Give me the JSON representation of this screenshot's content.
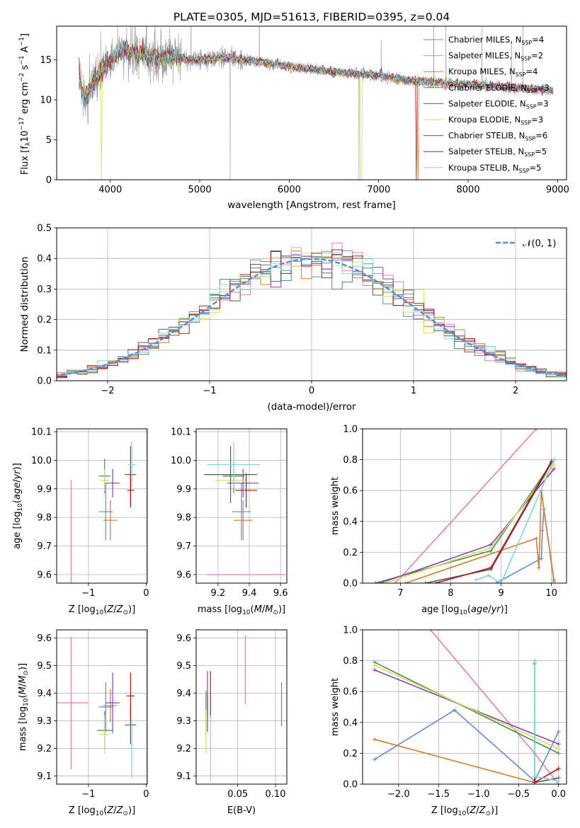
{
  "title": "PLATE=0305, MJD=51613, FIBERID=0395, z=0.04",
  "colors": {
    "chabrier_miles": "#5B8DDC",
    "salpeter_miles": "#E87DB8",
    "kroupa_miles": "#D97A25",
    "chabrier_elodie": "#4E8A5A",
    "salpeter_elodie": "#8E3DB5",
    "kroupa_elodie": "#C8E84A",
    "chabrier_stelib": "#5A5A5A",
    "salpeter_stelib": "#B01818",
    "kroupa_stelib": "#7ED6DD",
    "gaussian": "#5B8DDC"
  },
  "chart_data": [
    {
      "id": "spectrum",
      "type": "line",
      "xlabel": "wavelength [Angstrom, rest frame]",
      "ylabel": "Flux [f_λ10^-17 erg cm^-2 s^-1 A^-1]",
      "xlim": [
        3400,
        9100
      ],
      "ylim": [
        0,
        19.2
      ],
      "xticks": [
        4000,
        5000,
        6000,
        7000,
        8000,
        9000
      ],
      "yticks": [
        0,
        5,
        10,
        15
      ],
      "legend_position": "top-right",
      "legend": [
        {
          "label": "Chabrier MILES, N",
          "sub": "SSP",
          "suffix": "=4",
          "color_key": "chabrier_miles"
        },
        {
          "label": "Salpeter MILES, N",
          "sub": "SSP",
          "suffix": "=2",
          "color_key": "salpeter_miles"
        },
        {
          "label": "Kroupa MILES, N",
          "sub": "SSP",
          "suffix": "=4",
          "color_key": "kroupa_miles"
        },
        {
          "label": "Chabrier ELODIE, N",
          "sub": "SSP",
          "suffix": "=3",
          "color_key": "chabrier_elodie"
        },
        {
          "label": "Salpeter ELODIE, N",
          "sub": "SSP",
          "suffix": "=3",
          "color_key": "salpeter_elodie"
        },
        {
          "label": "Kroupa ELODIE, N",
          "sub": "SSP",
          "suffix": "=3",
          "color_key": "kroupa_elodie"
        },
        {
          "label": "Chabrier STELIB, N",
          "sub": "SSP",
          "suffix": "=6",
          "color_key": "chabrier_stelib"
        },
        {
          "label": "Salpeter STELIB, N",
          "sub": "SSP",
          "suffix": "=5",
          "color_key": "salpeter_stelib"
        },
        {
          "label": "Kroupa STELIB, N",
          "sub": "SSP",
          "suffix": "=5",
          "color_key": "kroupa_stelib"
        }
      ],
      "observed": {
        "color": "#a0a0a0",
        "x_range": [
          3650,
          8950
        ]
      },
      "model_continuum": [
        [
          3650,
          13.0
        ],
        [
          3700,
          10.0
        ],
        [
          3800,
          12.0
        ],
        [
          3900,
          13.5
        ],
        [
          4000,
          15.0
        ],
        [
          4100,
          16.0
        ],
        [
          4300,
          15.8
        ],
        [
          4500,
          15.4
        ],
        [
          4800,
          15.2
        ],
        [
          4900,
          14.9
        ],
        [
          5200,
          15.2
        ],
        [
          5500,
          15.0
        ],
        [
          6000,
          14.2
        ],
        [
          6500,
          13.5
        ],
        [
          7000,
          13.0
        ],
        [
          7400,
          12.3
        ],
        [
          8000,
          11.9
        ],
        [
          8500,
          11.5
        ],
        [
          8900,
          11.2
        ]
      ],
      "dropouts": [
        {
          "color_key": "kroupa_elodie",
          "x": 3900
        },
        {
          "color_key": "kroupa_elodie",
          "x": 6800
        },
        {
          "color_key": "salpeter_stelib",
          "x": 7420
        },
        {
          "color_key": "kroupa_miles",
          "x": 7440
        }
      ]
    },
    {
      "id": "residuals",
      "type": "bar",
      "xlabel": "(data-model)/error",
      "ylabel": "Normed distribution",
      "xlim": [
        -2.5,
        2.5
      ],
      "ylim": [
        0,
        0.5
      ],
      "xticks": [
        -2,
        -1,
        0,
        1,
        2
      ],
      "yticks": [
        0.0,
        0.1,
        0.2,
        0.3,
        0.4,
        0.5
      ],
      "legend_position": "top-right",
      "gaussian_label": "𝒩(0, 1)",
      "bin_width": 0.1
    },
    {
      "id": "age_vs_Z",
      "type": "scatter",
      "xlabel": "Z [log10(Z/Z⊙)]",
      "ylabel": "age [log10(age/yr)]",
      "xlim": [
        -1.55,
        0.02
      ],
      "ylim": [
        9.57,
        10.11
      ],
      "xticks": [
        -1,
        0
      ],
      "yticks": [
        9.6,
        9.7,
        9.8,
        9.9,
        10.0,
        10.1
      ],
      "points": [
        {
          "color_key": "chabrier_miles",
          "x": -0.7,
          "y": 9.82,
          "xerr": 0.12,
          "yerr": 0.1
        },
        {
          "color_key": "salpeter_miles",
          "x": -1.3,
          "y": 9.6,
          "xerr": 0.0,
          "yerr": 0.33
        },
        {
          "color_key": "kroupa_miles",
          "x": -0.62,
          "y": 9.79,
          "xerr": 0.12,
          "yerr": 0.07
        },
        {
          "color_key": "chabrier_elodie",
          "x": -0.72,
          "y": 9.945,
          "xerr": 0.1,
          "yerr": 0.06
        },
        {
          "color_key": "salpeter_elodie",
          "x": -0.58,
          "y": 9.92,
          "xerr": 0.12,
          "yerr": 0.05
        },
        {
          "color_key": "kroupa_elodie",
          "x": -0.72,
          "y": 9.93,
          "xerr": 0.08,
          "yerr": 0.04
        },
        {
          "color_key": "chabrier_stelib",
          "x": -0.27,
          "y": 9.95,
          "xerr": 0.1,
          "yerr": 0.1
        },
        {
          "color_key": "salpeter_stelib",
          "x": -0.27,
          "y": 9.895,
          "xerr": 0.06,
          "yerr": 0.06
        },
        {
          "color_key": "kroupa_stelib",
          "x": -0.25,
          "y": 9.985,
          "xerr": 0.06,
          "yerr": 0.08
        }
      ]
    },
    {
      "id": "age_vs_mass",
      "type": "scatter",
      "xlabel": "mass [log10(M/M⊙)]",
      "ylabel": "",
      "xlim": [
        9.06,
        9.64
      ],
      "ylim": [
        9.57,
        10.11
      ],
      "xticks": [
        9.2,
        9.4,
        9.6
      ],
      "yticks": [
        9.6,
        9.7,
        9.8,
        9.9,
        10.0,
        10.1
      ],
      "points": [
        {
          "color_key": "chabrier_miles",
          "x": 9.35,
          "y": 9.82,
          "xerr": 0.06,
          "yerr": 0.1
        },
        {
          "color_key": "salpeter_miles",
          "x": 9.38,
          "y": 9.6,
          "xerr": 0.25,
          "yerr": 0.0
        },
        {
          "color_key": "kroupa_miles",
          "x": 9.36,
          "y": 9.79,
          "xerr": 0.06,
          "yerr": 0.07
        },
        {
          "color_key": "chabrier_elodie",
          "x": 9.3,
          "y": 9.945,
          "xerr": 0.07,
          "yerr": 0.06
        },
        {
          "color_key": "salpeter_elodie",
          "x": 9.36,
          "y": 9.92,
          "xerr": 0.1,
          "yerr": 0.05
        },
        {
          "color_key": "kroupa_elodie",
          "x": 9.28,
          "y": 9.93,
          "xerr": 0.1,
          "yerr": 0.04
        },
        {
          "color_key": "chabrier_stelib",
          "x": 9.28,
          "y": 9.95,
          "xerr": 0.17,
          "yerr": 0.1
        },
        {
          "color_key": "salpeter_stelib",
          "x": 9.38,
          "y": 9.895,
          "xerr": 0.07,
          "yerr": 0.06
        },
        {
          "color_key": "kroupa_stelib",
          "x": 9.3,
          "y": 9.985,
          "xerr": 0.17,
          "yerr": 0.08
        }
      ]
    },
    {
      "id": "mass_weight_vs_age",
      "type": "line",
      "xlabel": "age [log10(age/yr)]",
      "ylabel": "mass weight",
      "xlim": [
        6.25,
        10.3
      ],
      "ylim": [
        0,
        1
      ],
      "xticks": [
        7,
        8,
        9,
        10
      ],
      "yticks": [
        0.0,
        0.2,
        0.4,
        0.6,
        0.8,
        1.0
      ],
      "series": [
        {
          "color_key": "salpeter_miles",
          "x": [
            6.9,
            9.7
          ],
          "y": [
            0.0,
            1.0
          ]
        },
        {
          "color_key": "chabrier_miles",
          "x": [
            8.9,
            9.8,
            9.82,
            9.85,
            10.05
          ],
          "y": [
            0.0,
            0.16,
            0.34,
            0.48,
            0.02
          ]
        },
        {
          "color_key": "kroupa_miles",
          "x": [
            7.1,
            9.7,
            9.75,
            9.8,
            10.05
          ],
          "y": [
            0.0,
            0.29,
            0.1,
            0.6,
            0.01
          ]
        },
        {
          "color_key": "chabrier_elodie",
          "x": [
            6.5,
            8.8,
            10.05
          ],
          "y": [
            0.0,
            0.21,
            0.8
          ]
        },
        {
          "color_key": "salpeter_elodie",
          "x": [
            6.6,
            8.8,
            10.05
          ],
          "y": [
            0.0,
            0.25,
            0.74
          ]
        },
        {
          "color_key": "kroupa_elodie",
          "x": [
            6.7,
            8.8,
            10.05
          ],
          "y": [
            0.0,
            0.23,
            0.77
          ]
        },
        {
          "color_key": "chabrier_stelib",
          "x": [
            7.5,
            8.8,
            10.0
          ],
          "y": [
            0.0,
            0.09,
            0.78
          ]
        },
        {
          "color_key": "salpeter_stelib",
          "x": [
            7.7,
            8.8,
            10.0
          ],
          "y": [
            0.0,
            0.1,
            0.79
          ]
        },
        {
          "color_key": "kroupa_stelib",
          "x": [
            8.5,
            8.75,
            9.0,
            10.05
          ],
          "y": [
            0.02,
            0.05,
            0.0,
            0.8
          ]
        }
      ]
    },
    {
      "id": "mass_vs_Z",
      "type": "scatter",
      "xlabel": "Z [log10(Z/Z⊙)]",
      "ylabel": "mass [log10(M/M⊙)]",
      "xlim": [
        -1.55,
        0.02
      ],
      "ylim": [
        9.07,
        9.63
      ],
      "xticks": [
        -1,
        0
      ],
      "yticks": [
        9.1,
        9.2,
        9.3,
        9.4,
        9.5,
        9.6
      ],
      "points": [
        {
          "color_key": "chabrier_miles",
          "x": -0.7,
          "y": 9.35,
          "xerr": 0.12,
          "yerr": 0.09
        },
        {
          "color_key": "salpeter_miles",
          "x": -1.3,
          "y": 9.365,
          "xerr": 0.3,
          "yerr": 0.24
        },
        {
          "color_key": "kroupa_miles",
          "x": -0.62,
          "y": 9.355,
          "xerr": 0.12,
          "yerr": 0.06
        },
        {
          "color_key": "chabrier_elodie",
          "x": -0.72,
          "y": 9.265,
          "xerr": 0.13,
          "yerr": 0.07
        },
        {
          "color_key": "salpeter_elodie",
          "x": -0.58,
          "y": 9.365,
          "xerr": 0.12,
          "yerr": 0.11
        },
        {
          "color_key": "kroupa_elodie",
          "x": -0.72,
          "y": 9.25,
          "xerr": 0.08,
          "yerr": 0.07
        },
        {
          "color_key": "chabrier_stelib",
          "x": -0.27,
          "y": 9.285,
          "xerr": 0.1,
          "yerr": 0.07
        },
        {
          "color_key": "salpeter_stelib",
          "x": -0.27,
          "y": 9.39,
          "xerr": 0.07,
          "yerr": 0.085
        },
        {
          "color_key": "kroupa_stelib",
          "x": -0.25,
          "y": 9.2,
          "xerr": 0.05,
          "yerr": 0.11
        }
      ]
    },
    {
      "id": "mass_vs_ebv",
      "type": "scatter",
      "xlabel": "E(B-V)",
      "ylabel": "",
      "xlim": [
        -0.005,
        0.115
      ],
      "ylim": [
        9.07,
        9.63
      ],
      "xticks": [
        0.05,
        0.1
      ],
      "yticks": [
        9.1,
        9.2,
        9.3,
        9.4,
        9.5,
        9.6
      ],
      "points": [
        {
          "color_key": "chabrier_miles",
          "x": 0.108,
          "y": 9.36,
          "xerr": 0,
          "yerr": 0.08
        },
        {
          "color_key": "salpeter_miles",
          "x": 0.06,
          "y": 9.485,
          "xerr": 0,
          "yerr": 0.125
        },
        {
          "color_key": "kroupa_miles",
          "x": 0.108,
          "y": 9.33,
          "xerr": 0,
          "yerr": 0.05
        },
        {
          "color_key": "chabrier_elodie",
          "x": 0.008,
          "y": 9.33,
          "xerr": 0,
          "yerr": 0.08
        },
        {
          "color_key": "salpeter_elodie",
          "x": 0.01,
          "y": 9.4,
          "xerr": 0,
          "yerr": 0.08
        },
        {
          "color_key": "kroupa_elodie",
          "x": 0.008,
          "y": 9.26,
          "xerr": 0,
          "yerr": 0.08
        },
        {
          "color_key": "chabrier_stelib",
          "x": 0.01,
          "y": 9.33,
          "xerr": 0,
          "yerr": 0.07
        },
        {
          "color_key": "salpeter_stelib",
          "x": 0.014,
          "y": 9.395,
          "xerr": 0,
          "yerr": 0.085
        },
        {
          "color_key": "kroupa_stelib",
          "x": 0.014,
          "y": 9.2,
          "xerr": 0,
          "yerr": 0.12
        }
      ]
    },
    {
      "id": "mass_weight_vs_Z",
      "type": "line",
      "xlabel": "Z [log10(Z/Z⊙)]",
      "ylabel": "mass weight",
      "xlim": [
        -2.45,
        0.1
      ],
      "ylim": [
        0,
        1
      ],
      "xticks": [
        -2.0,
        -1.5,
        -1.0,
        -0.5,
        0.0
      ],
      "yticks": [
        0.0,
        0.2,
        0.4,
        0.6,
        0.8,
        1.0
      ],
      "series": [
        {
          "color_key": "salpeter_miles",
          "x": [
            -1.6,
            -0.3,
            0.0
          ],
          "y": [
            1.0,
            0.2,
            0.0
          ]
        },
        {
          "color_key": "chabrier_miles",
          "x": [
            -2.3,
            -1.3,
            -0.3,
            0.0
          ],
          "y": [
            0.16,
            0.48,
            0.02,
            0.34
          ]
        },
        {
          "color_key": "kroupa_miles",
          "x": [
            -2.3,
            -0.3,
            0.0
          ],
          "y": [
            0.29,
            0.01,
            0.1
          ]
        },
        {
          "color_key": "chabrier_elodie",
          "x": [
            -2.3,
            0.0
          ],
          "y": [
            0.79,
            0.2
          ]
        },
        {
          "color_key": "salpeter_elodie",
          "x": [
            -2.3,
            0.0
          ],
          "y": [
            0.74,
            0.26
          ]
        },
        {
          "color_key": "kroupa_elodie",
          "x": [
            -2.3,
            0.0
          ],
          "y": [
            0.77,
            0.23
          ]
        },
        {
          "color_key": "chabrier_stelib",
          "x": [
            -0.3,
            -0.3,
            0.0
          ],
          "y": [
            0.78,
            0.01,
            0.04
          ]
        },
        {
          "color_key": "salpeter_stelib",
          "x": [
            -0.3,
            -0.3,
            0.0
          ],
          "y": [
            0.8,
            0.01,
            0.1
          ]
        },
        {
          "color_key": "kroupa_stelib",
          "x": [
            -0.3,
            -0.3,
            0.0
          ],
          "y": [
            0.8,
            0.05,
            0.02
          ]
        }
      ]
    }
  ]
}
